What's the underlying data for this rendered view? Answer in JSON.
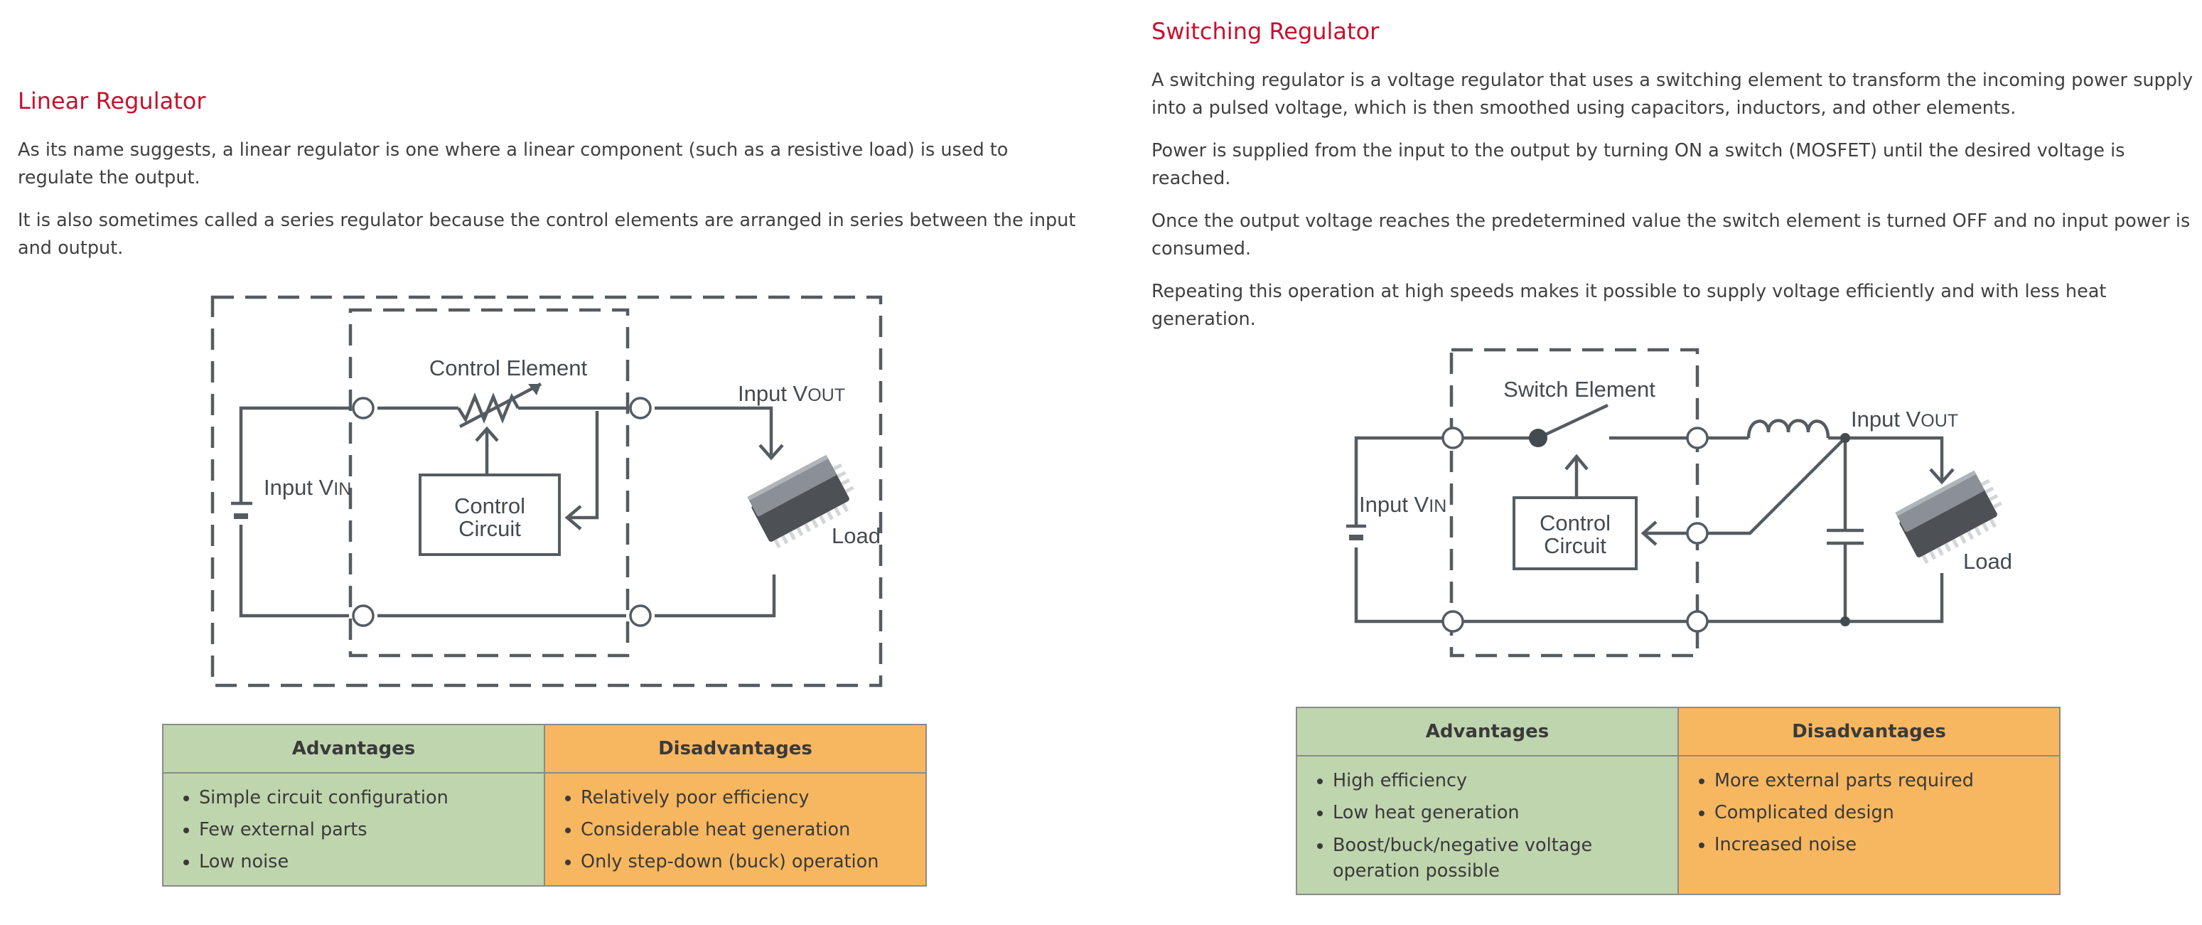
{
  "linear": {
    "title": "Linear Regulator",
    "paragraphs": [
      "As its name suggests, a linear regulator is one where a linear component (such as a resistive load) is used to regulate the output.",
      "It is also sometimes called a series regulator because the control elements are arranged in series between the input and output."
    ],
    "diagram": {
      "control_element": "Control Element",
      "input_vout_main": "Input V",
      "input_vout_sub": "OUT",
      "input_vin_main": "Input V",
      "input_vin_sub": "IN",
      "control_line1": "Control",
      "control_line2": "Circuit",
      "load": "Load"
    },
    "table": {
      "advantages_header": "Advantages",
      "disadvantages_header": "Disadvantages",
      "advantages": [
        "Simple circuit configuration",
        "Few external parts",
        "Low noise"
      ],
      "disadvantages": [
        "Relatively poor efficiency",
        "Considerable heat generation",
        "Only step-down (buck) operation"
      ]
    }
  },
  "switching": {
    "title": "Switching Regulator",
    "paragraphs": [
      "A switching regulator is a voltage regulator that uses a switching element to transform the incoming power supply into a pulsed voltage, which is then smoothed using capacitors, inductors, and other elements.",
      "Power is supplied from the input to the output by turning ON a switch (MOSFET) until the desired voltage is reached.",
      "Once the output voltage reaches the predetermined value the switch element is turned OFF and no input power is consumed.",
      "Repeating this operation at high speeds makes it possible to supply voltage efficiently and with less heat generation."
    ],
    "diagram": {
      "switch_element": "Switch Element",
      "input_vout_main": "Input V",
      "input_vout_sub": "OUT",
      "input_vin_main": "Input V",
      "input_vin_sub": "IN",
      "control_line1": "Control",
      "control_line2": "Circuit",
      "load": "Load"
    },
    "table": {
      "advantages_header": "Advantages",
      "disadvantages_header": "Disadvantages",
      "advantages": [
        "High efficiency",
        "Low heat generation",
        "Boost/buck/negative voltage operation possible"
      ],
      "disadvantages": [
        "More external parts required",
        "Complicated design",
        "Increased noise"
      ]
    }
  },
  "colors": {
    "heading": "#c8102e",
    "advantages_bg": "#bfd5ae",
    "disadvantages_bg": "#f7b760",
    "wire": "#5a6166"
  }
}
